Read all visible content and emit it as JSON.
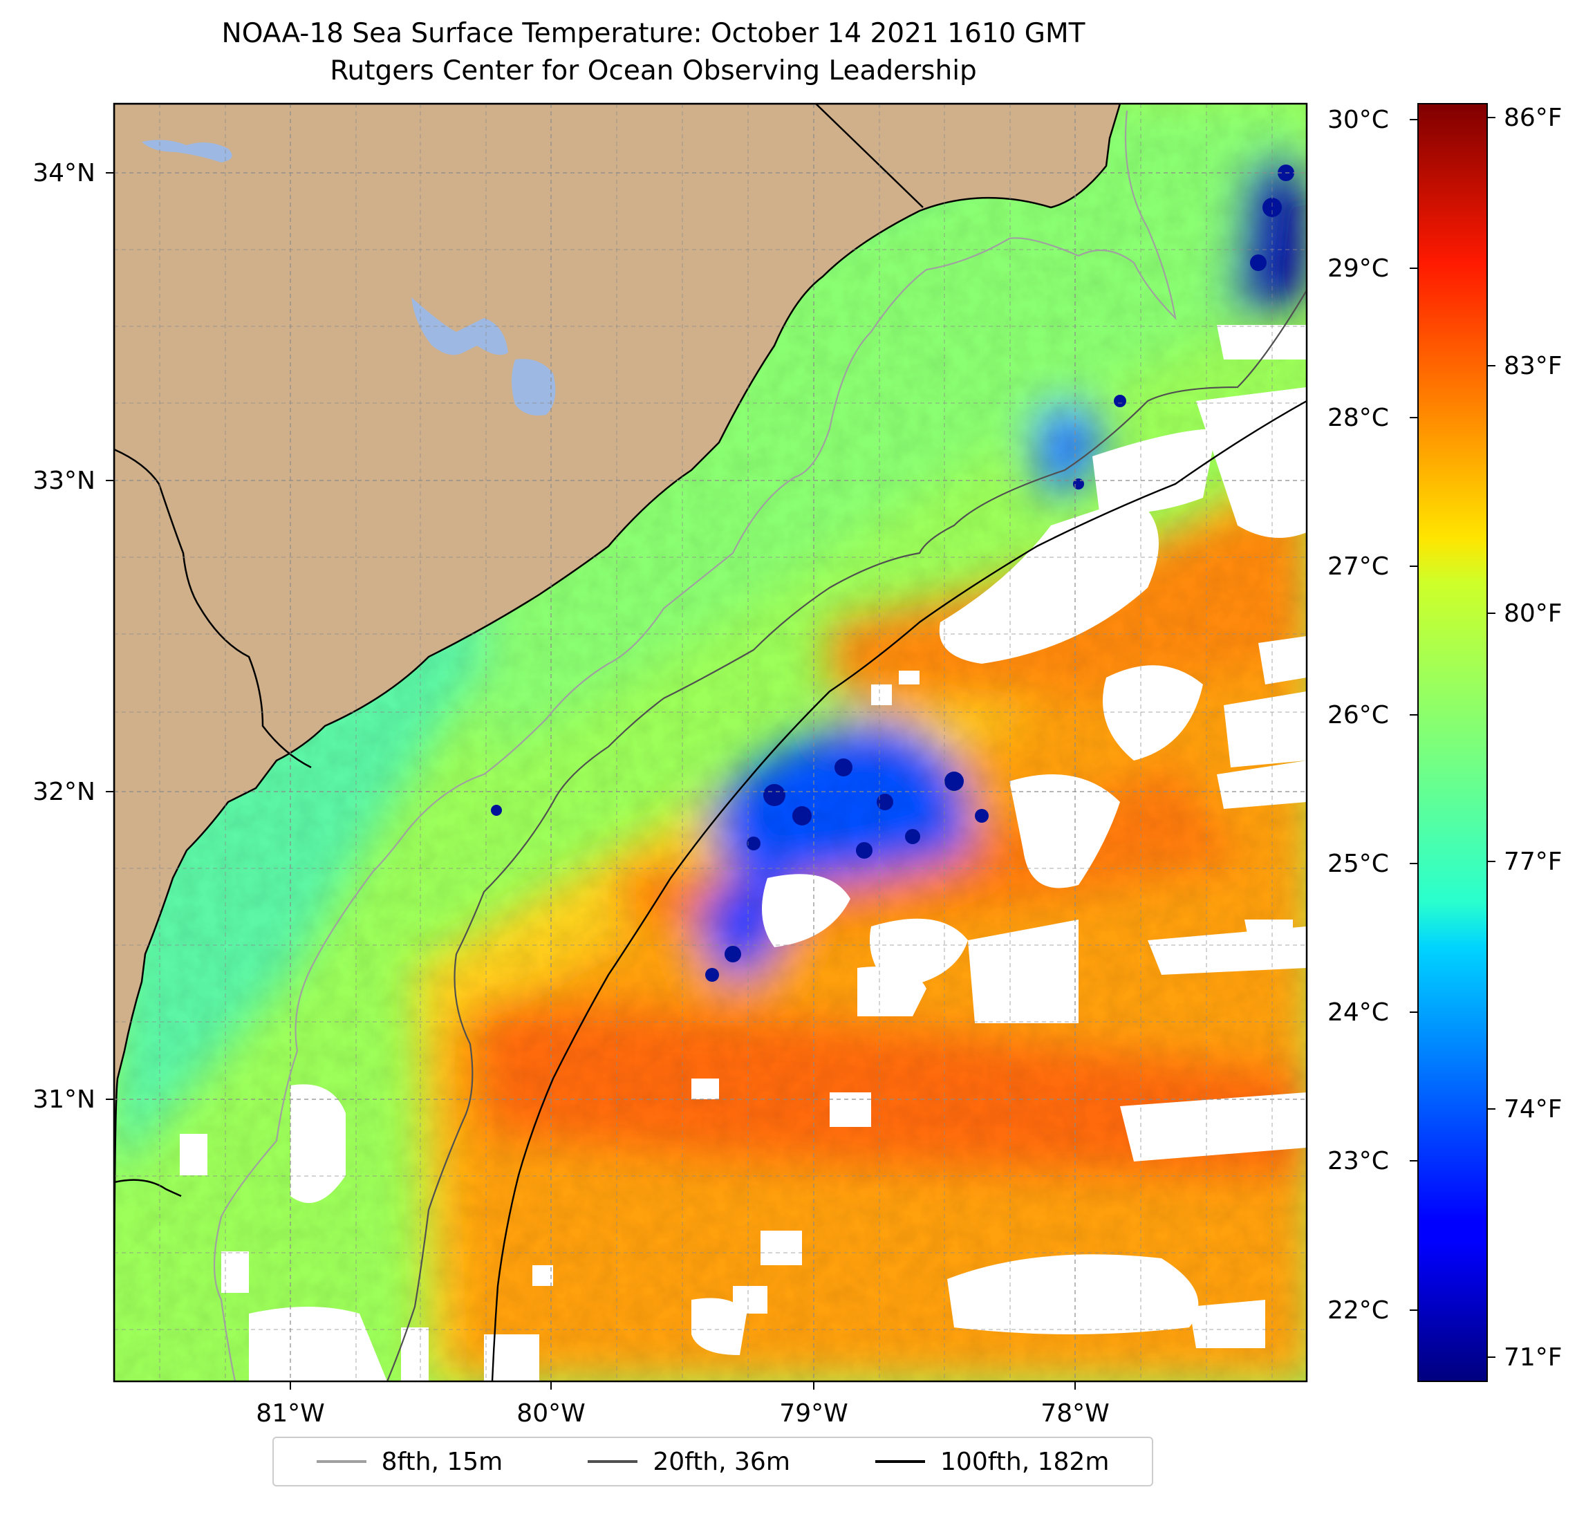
{
  "title": "NOAA-18 Sea Surface Temperature: October 14 2021 1610 GMT",
  "subtitle": "Rutgers Center for Ocean Observing Leadership",
  "map": {
    "lon_range": [
      -81.68,
      -77.12
    ],
    "lat_range": [
      30.07,
      34.21
    ],
    "lon_ticks": [
      "81°W",
      "80°W",
      "79°W",
      "78°W"
    ],
    "lat_ticks": [
      "34°N",
      "33°N",
      "32°N",
      "31°N"
    ],
    "gridlines": true,
    "land_color": "#cfb08a",
    "lake_color": "#9db8e2",
    "missing_data_color": "#ffffff"
  },
  "colorbar": {
    "colormap": "jet",
    "celsius_ticks": [
      "30°C",
      "29°C",
      "28°C",
      "27°C",
      "26°C",
      "25°C",
      "24°C",
      "23°C",
      "22°C"
    ],
    "fahrenheit_ticks": [
      "86°F",
      "83°F",
      "80°F",
      "77°F",
      "74°F",
      "71°F"
    ],
    "range_f": [
      70.5,
      86.3
    ]
  },
  "legend": {
    "position": "bottom-center",
    "items": [
      {
        "label": "8fth, 15m",
        "color": "#a0a0a0"
      },
      {
        "label": "20fth, 36m",
        "color": "#505050"
      },
      {
        "label": "100fth, 182m",
        "color": "#000000"
      }
    ]
  }
}
